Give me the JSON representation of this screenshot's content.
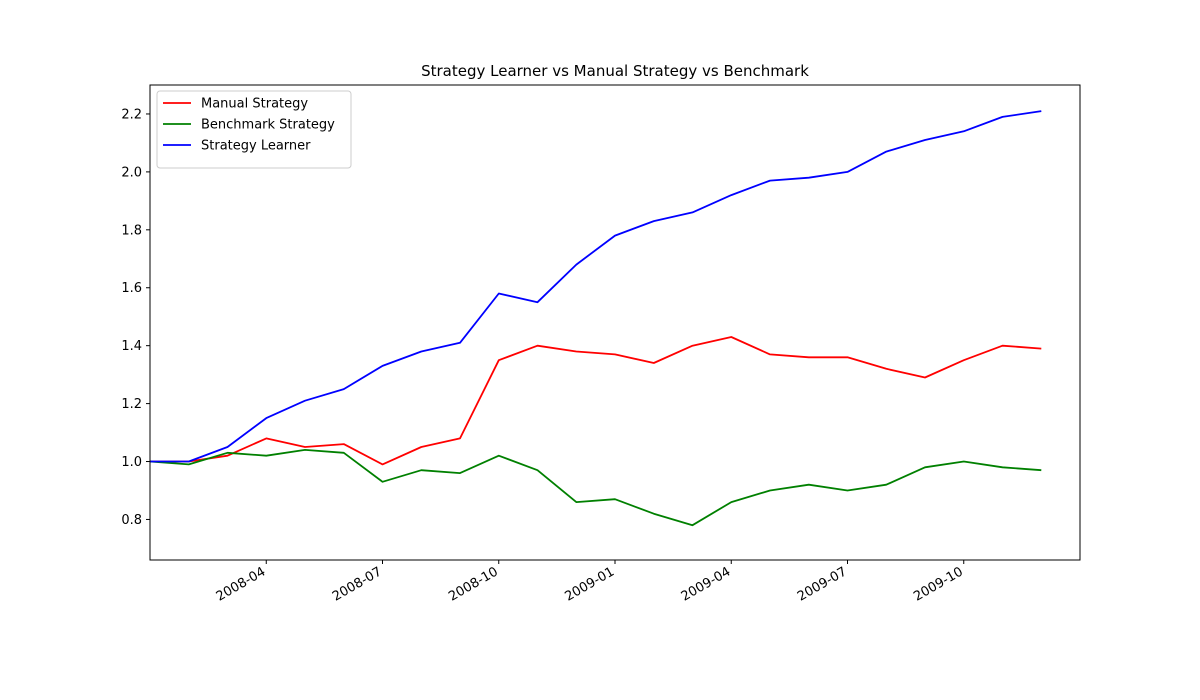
{
  "chart_data": {
    "type": "line",
    "title": "Strategy Learner vs Manual Strategy vs Benchmark",
    "x": [
      "2008-01",
      "2008-02",
      "2008-03",
      "2008-04",
      "2008-05",
      "2008-06",
      "2008-07",
      "2008-08",
      "2008-09",
      "2008-10",
      "2008-11",
      "2008-12",
      "2009-01",
      "2009-02",
      "2009-03",
      "2009-04",
      "2009-05",
      "2009-06",
      "2009-07",
      "2009-08",
      "2009-09",
      "2009-10",
      "2009-11",
      "2009-12"
    ],
    "series": [
      {
        "name": "Manual Strategy",
        "color": "#ff0000",
        "values": [
          1.0,
          1.0,
          1.02,
          1.08,
          1.05,
          1.06,
          0.99,
          1.05,
          1.08,
          1.35,
          1.4,
          1.38,
          1.37,
          1.34,
          1.4,
          1.43,
          1.37,
          1.36,
          1.36,
          1.32,
          1.29,
          1.35,
          1.4,
          1.39
        ]
      },
      {
        "name": "Benchmark Strategy",
        "color": "#008000",
        "values": [
          1.0,
          0.99,
          1.03,
          1.02,
          1.04,
          1.03,
          0.93,
          0.97,
          0.96,
          1.02,
          0.97,
          0.86,
          0.87,
          0.82,
          0.78,
          0.86,
          0.9,
          0.92,
          0.9,
          0.92,
          0.98,
          1.0,
          0.98,
          0.97
        ]
      },
      {
        "name": "Strategy Learner",
        "color": "#0000ff",
        "values": [
          1.0,
          1.0,
          1.05,
          1.15,
          1.21,
          1.25,
          1.33,
          1.38,
          1.41,
          1.58,
          1.55,
          1.68,
          1.78,
          1.83,
          1.86,
          1.92,
          1.97,
          1.98,
          2.0,
          2.07,
          2.11,
          2.14,
          2.19,
          2.21
        ]
      }
    ],
    "xlim": [
      "2008-01",
      "2009-12"
    ],
    "xticks": [
      "2008-04",
      "2008-07",
      "2008-10",
      "2009-01",
      "2009-04",
      "2009-07",
      "2009-10"
    ],
    "ylim": [
      0.66,
      2.3
    ],
    "yticks": [
      0.8,
      {
        "value": 1,
        "label": "1.0"
      },
      1.2,
      1.4,
      1.6,
      1.8,
      {
        "value": 2,
        "label": "2.0"
      },
      2.2
    ],
    "legend": "upper left"
  }
}
